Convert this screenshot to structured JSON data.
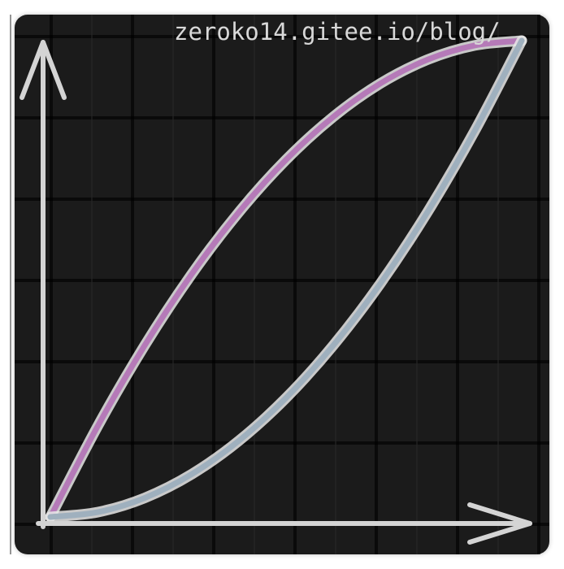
{
  "watermark": "zeroko14.gitee.io/blog/",
  "colors": {
    "background": "#1b1b1b",
    "grid": "#000000",
    "axes": "#d4d4d4",
    "series_ease_out": "#b57ab8",
    "series_ease_in": "#9fb0be"
  },
  "chart_data": {
    "type": "line",
    "title": "",
    "xlabel": "",
    "ylabel": "",
    "xlim": [
      0,
      1
    ],
    "ylim": [
      0,
      1
    ],
    "grid": true,
    "legend": "none",
    "series": [
      {
        "color": "#b57ab8",
        "x": [
          0,
          0.1,
          0.2,
          0.3,
          0.4,
          0.5,
          0.6,
          0.7,
          0.8,
          0.9,
          1.0
        ],
        "y": [
          0,
          0.19,
          0.36,
          0.51,
          0.64,
          0.75,
          0.84,
          0.91,
          0.96,
          0.99,
          1.0
        ]
      },
      {
        "color": "#9fb0be",
        "x": [
          0,
          0.1,
          0.2,
          0.3,
          0.4,
          0.5,
          0.6,
          0.7,
          0.8,
          0.9,
          1.0
        ],
        "y": [
          0,
          0.01,
          0.04,
          0.09,
          0.16,
          0.25,
          0.36,
          0.49,
          0.64,
          0.81,
          1.0
        ]
      }
    ]
  }
}
